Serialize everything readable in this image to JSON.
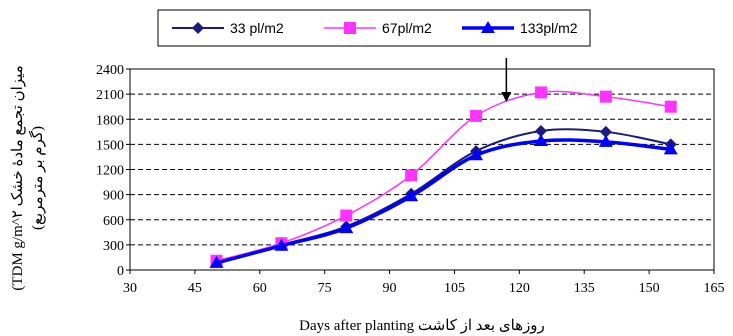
{
  "chart_data": {
    "type": "line",
    "x": [
      50,
      65,
      80,
      95,
      110,
      125,
      140,
      155
    ],
    "series": [
      {
        "name": "33 pl/m2",
        "color": "#1c1c7a",
        "marker": "diamond",
        "values": [
          95,
          300,
          520,
          910,
          1420,
          1660,
          1650,
          1500
        ]
      },
      {
        "name": "67pl/m2",
        "color": "#ff33ff",
        "marker": "square",
        "values": [
          110,
          320,
          650,
          1130,
          1840,
          2120,
          2070,
          1950
        ]
      },
      {
        "name": "133pl/m2",
        "color": "#0000ff",
        "marker": "triangle",
        "values": [
          85,
          290,
          500,
          880,
          1370,
          1540,
          1530,
          1440
        ]
      }
    ],
    "xlim": [
      30,
      165
    ],
    "ylim": [
      0,
      2400
    ],
    "xticks": [
      "30",
      "45",
      "60",
      "75",
      "90",
      "105",
      "120",
      "135",
      "150",
      "165"
    ],
    "yticks": [
      "0",
      "300",
      "600",
      "900",
      "1200",
      "1500",
      "1800",
      "2100",
      "2400"
    ],
    "xlabel": "Days after planting روزهای بعد از کاشت",
    "ylabel_line1": "(TDM g/m^۲ میزان تجمع مادهٔ خشک",
    "ylabel_line2": "(گرم بر مترمربع)",
    "grid": "horizontal dashed",
    "legend_position": "top",
    "annotation": {
      "type": "arrow",
      "x": 117,
      "points_to_y": 2100
    }
  }
}
